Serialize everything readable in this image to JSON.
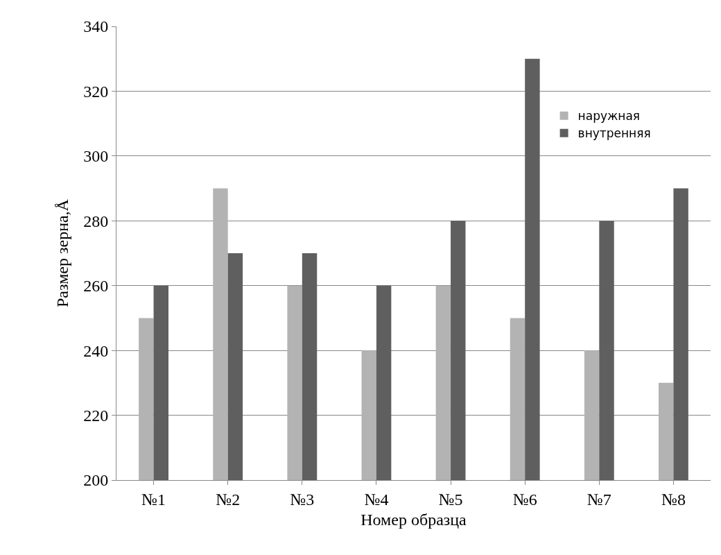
{
  "chart_data": {
    "type": "bar",
    "xlabel": "Номер образца",
    "ylabel": "Размер зерна,Å",
    "categories": [
      "№1",
      "№2",
      "№3",
      "№4",
      "№5",
      "№6",
      "№7",
      "№8"
    ],
    "series": [
      {
        "name": "наружная",
        "color": "#b3b3b3",
        "values": [
          250,
          290,
          260,
          240,
          260,
          250,
          240,
          230
        ]
      },
      {
        "name": "внутренняя",
        "color": "#5f5f5f",
        "values": [
          260,
          270,
          270,
          260,
          280,
          330,
          280,
          290
        ]
      }
    ],
    "ylim": [
      200,
      340
    ],
    "yticks": [
      200,
      220,
      240,
      260,
      280,
      300,
      320,
      340
    ],
    "grid": "y",
    "legend": "top right"
  }
}
